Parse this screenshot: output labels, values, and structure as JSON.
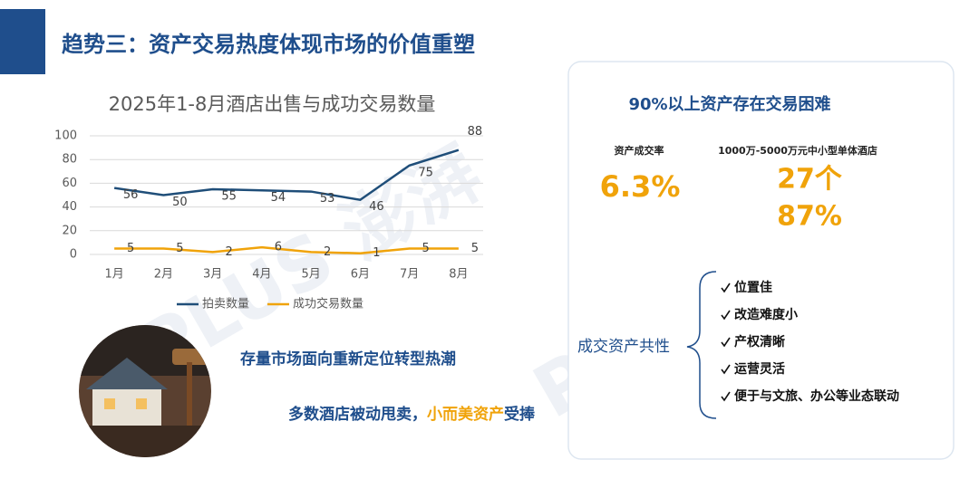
{
  "header": {
    "title": "趋势三：资产交易热度体现市场的价值重塑"
  },
  "watermark": "PLUS 澎湃",
  "chart_data": {
    "type": "line",
    "title": "2025年1-8月酒店出售与成功交易数量",
    "categories": [
      "1月",
      "2月",
      "3月",
      "4月",
      "5月",
      "6月",
      "7月",
      "8月"
    ],
    "series": [
      {
        "name": "拍卖数量",
        "color": "#1f4e79",
        "values": [
          56,
          50,
          55,
          54,
          53,
          46,
          75,
          88
        ]
      },
      {
        "name": "成功交易数量",
        "color": "#f0a30a",
        "values": [
          5,
          5,
          2,
          6,
          2,
          1,
          5,
          5
        ]
      }
    ],
    "ylim": [
      0,
      100
    ],
    "yticks": [
      0,
      20,
      40,
      60,
      80,
      100
    ],
    "grid": true,
    "legend": "bottom"
  },
  "left_texts": {
    "line1": "存量市场面向重新定位转型热潮",
    "line2a": "多数酒店被动甩卖，",
    "line2b": "小而美资产",
    "line2c": "受捧"
  },
  "panel": {
    "title": "90%以上资产存在交易困难",
    "rate_label": "资产成交率",
    "rate_value": "6.3%",
    "hotel_label": "1000万-5000万元中小型单体酒店",
    "hotel_count": "27个",
    "hotel_share": "87%",
    "commonalities": {
      "label": "成交资产共性",
      "items": [
        "位置佳",
        "改造难度小",
        "产权清晰",
        "运营灵活",
        "便于与文旅、办公等业态联动"
      ]
    }
  }
}
